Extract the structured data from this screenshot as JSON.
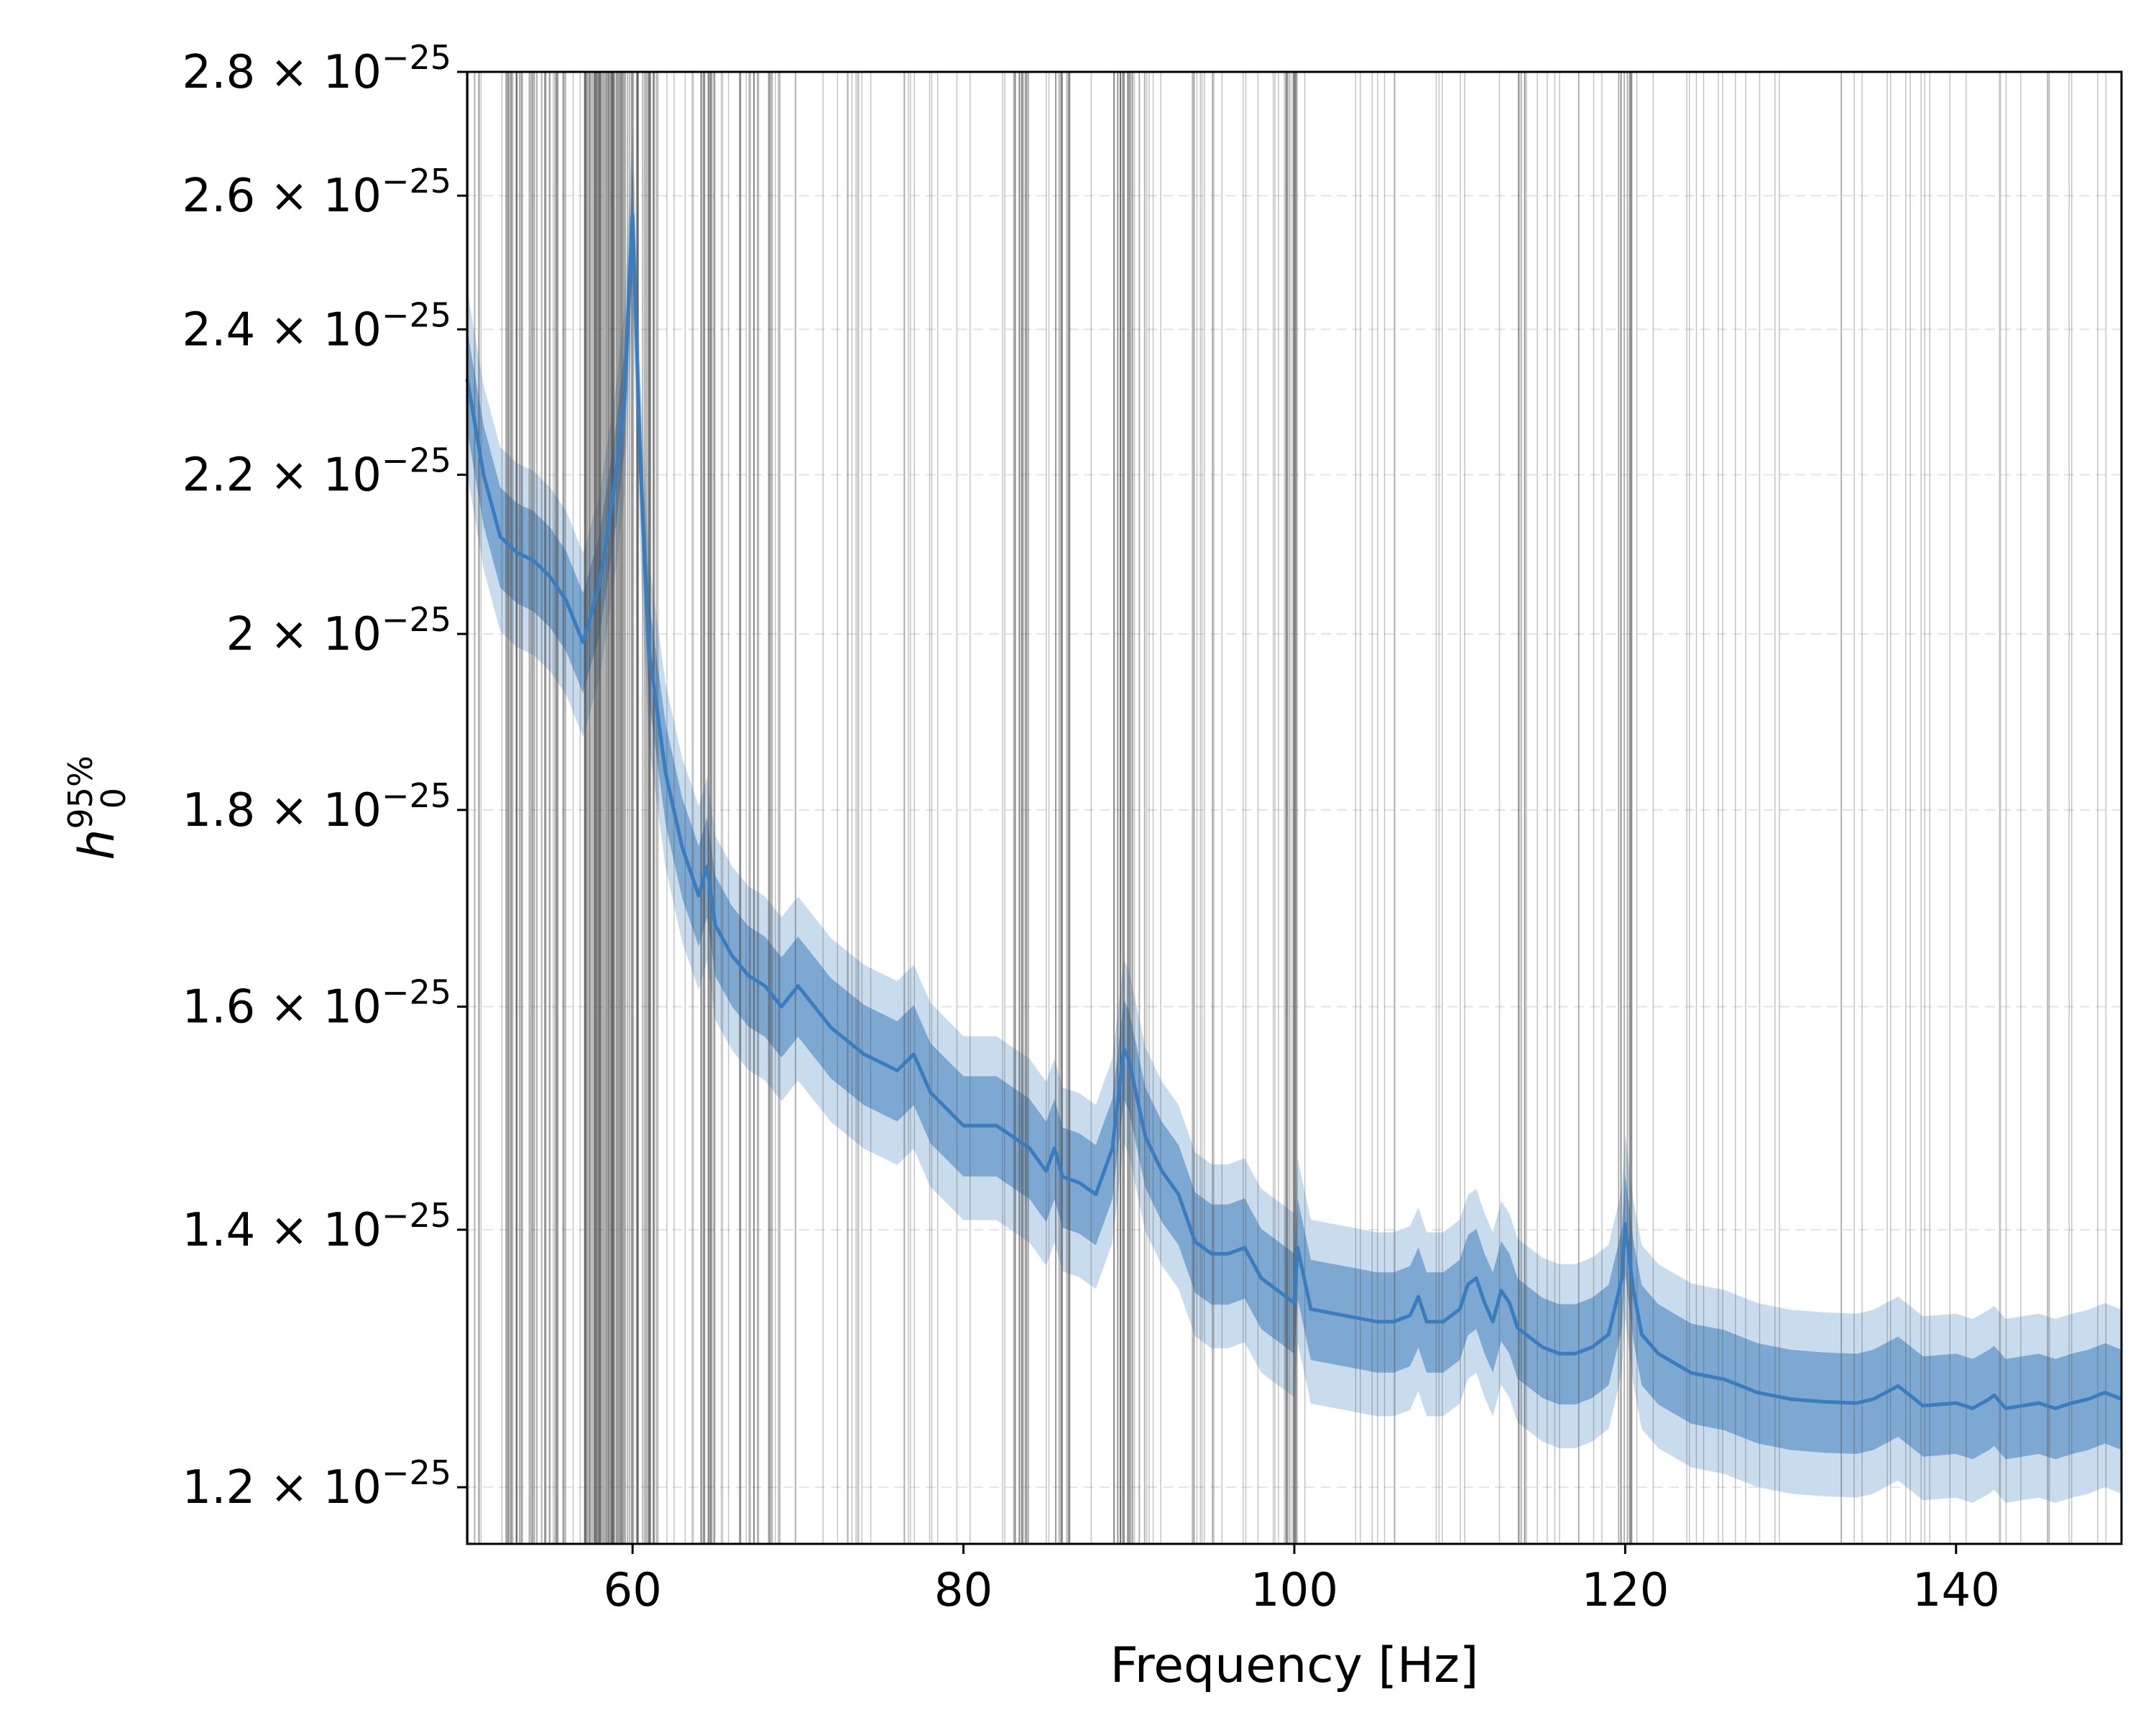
{
  "chart_data": {
    "type": "line",
    "xlabel": "Frequency [Hz]",
    "ylabel": {
      "base": "h",
      "sub": "0",
      "sup": "95%"
    },
    "xlim": [
      50,
      150
    ],
    "ylim": [
      1.16e-25,
      2.8e-25
    ],
    "yscale": "log",
    "x_ticks": [
      60,
      80,
      100,
      120,
      140
    ],
    "y_ticks": [
      {
        "value": 1.2e-25,
        "mantissa": "1.2",
        "times": "×",
        "base": "10",
        "exp": "−25"
      },
      {
        "value": 1.4e-25,
        "mantissa": "1.4",
        "times": "×",
        "base": "10",
        "exp": "−25"
      },
      {
        "value": 1.6e-25,
        "mantissa": "1.6",
        "times": "×",
        "base": "10",
        "exp": "−25"
      },
      {
        "value": 1.8e-25,
        "mantissa": "1.8",
        "times": "×",
        "base": "10",
        "exp": "−25"
      },
      {
        "value": 2e-25,
        "mantissa": "2",
        "times": "×",
        "base": "10",
        "exp": "−25"
      },
      {
        "value": 2.2e-25,
        "mantissa": "2.2",
        "times": "×",
        "base": "10",
        "exp": "−25"
      },
      {
        "value": 2.4e-25,
        "mantissa": "2.4",
        "times": "×",
        "base": "10",
        "exp": "−25"
      },
      {
        "value": 2.6e-25,
        "mantissa": "2.6",
        "times": "×",
        "base": "10",
        "exp": "−25"
      },
      {
        "value": 2.8e-25,
        "mantissa": "2.8",
        "times": "×",
        "base": "10",
        "exp": "−25"
      }
    ],
    "grid": {
      "y": true,
      "x": false,
      "style": "dashed light gray"
    },
    "colors": {
      "line": "#3a7dbf",
      "band_1sigma": "#6f9fcd",
      "band_2sigma": "#c9dcee",
      "veto_lines": "#555555"
    },
    "series": [
      {
        "x": [
          50,
          51,
          52,
          53,
          54,
          55,
          56,
          57,
          58,
          59,
          59.5,
          60,
          60.5,
          61,
          62,
          63,
          64,
          64.5,
          65,
          66,
          67,
          68,
          69,
          70,
          71,
          72,
          74,
          76,
          77,
          78,
          80,
          82,
          83,
          84,
          85,
          85.5,
          86,
          87,
          88,
          89,
          89.7,
          90,
          91,
          92,
          93,
          94,
          95,
          96,
          97,
          98,
          99,
          100,
          100.2,
          101,
          103,
          105,
          106,
          107,
          107.5,
          108,
          109,
          110,
          110.5,
          111,
          111.5,
          112,
          112.5,
          113,
          113.5,
          114,
          115,
          116,
          117,
          118,
          119,
          119.8,
          120,
          120.5,
          121,
          122,
          124,
          126,
          128,
          130,
          132,
          134,
          135,
          136.5,
          137,
          138,
          140,
          141,
          142,
          142.3,
          143,
          144,
          145,
          146,
          147,
          148,
          149,
          150
        ],
        "y": [
          2.33e-25,
          2.2e-25,
          2.12e-25,
          2.1e-25,
          2.09e-25,
          2.07e-25,
          2.04e-25,
          1.99e-25,
          2.06e-25,
          2.2e-25,
          2.3e-25,
          2.57e-25,
          2.2e-25,
          1.98e-25,
          1.84e-25,
          1.76e-25,
          1.71e-25,
          1.74e-25,
          1.68e-25,
          1.65e-25,
          1.63e-25,
          1.62e-25,
          1.6e-25,
          1.62e-25,
          1.6e-25,
          1.58e-25,
          1.555e-25,
          1.54e-25,
          1.555e-25,
          1.52e-25,
          1.49e-25,
          1.49e-25,
          1.48e-25,
          1.47e-25,
          1.45e-25,
          1.47e-25,
          1.445e-25,
          1.44e-25,
          1.43e-25,
          1.47e-25,
          1.56e-25,
          1.55e-25,
          1.48e-25,
          1.45e-25,
          1.43e-25,
          1.39e-25,
          1.38e-25,
          1.38e-25,
          1.385e-25,
          1.36e-25,
          1.35e-25,
          1.34e-25,
          1.385e-25,
          1.335e-25,
          1.33e-25,
          1.325e-25,
          1.325e-25,
          1.33e-25,
          1.345e-25,
          1.325e-25,
          1.325e-25,
          1.335e-25,
          1.355e-25,
          1.36e-25,
          1.34e-25,
          1.325e-25,
          1.35e-25,
          1.34e-25,
          1.32e-25,
          1.315e-25,
          1.305e-25,
          1.3e-25,
          1.3e-25,
          1.305e-25,
          1.315e-25,
          1.36e-25,
          1.405e-25,
          1.35e-25,
          1.315e-25,
          1.3e-25,
          1.285e-25,
          1.28e-25,
          1.27e-25,
          1.265e-25,
          1.263e-25,
          1.262e-25,
          1.265e-25,
          1.275e-25,
          1.27e-25,
          1.26e-25,
          1.262e-25,
          1.258e-25,
          1.265e-25,
          1.268e-25,
          1.258e-25,
          1.26e-25,
          1.262e-25,
          1.258e-25,
          1.262e-25,
          1.265e-25,
          1.27e-25,
          1.265e-25
        ]
      }
    ],
    "bands": {
      "one_sigma_rel": 0.03,
      "two_sigma_rel": 0.055
    }
  }
}
